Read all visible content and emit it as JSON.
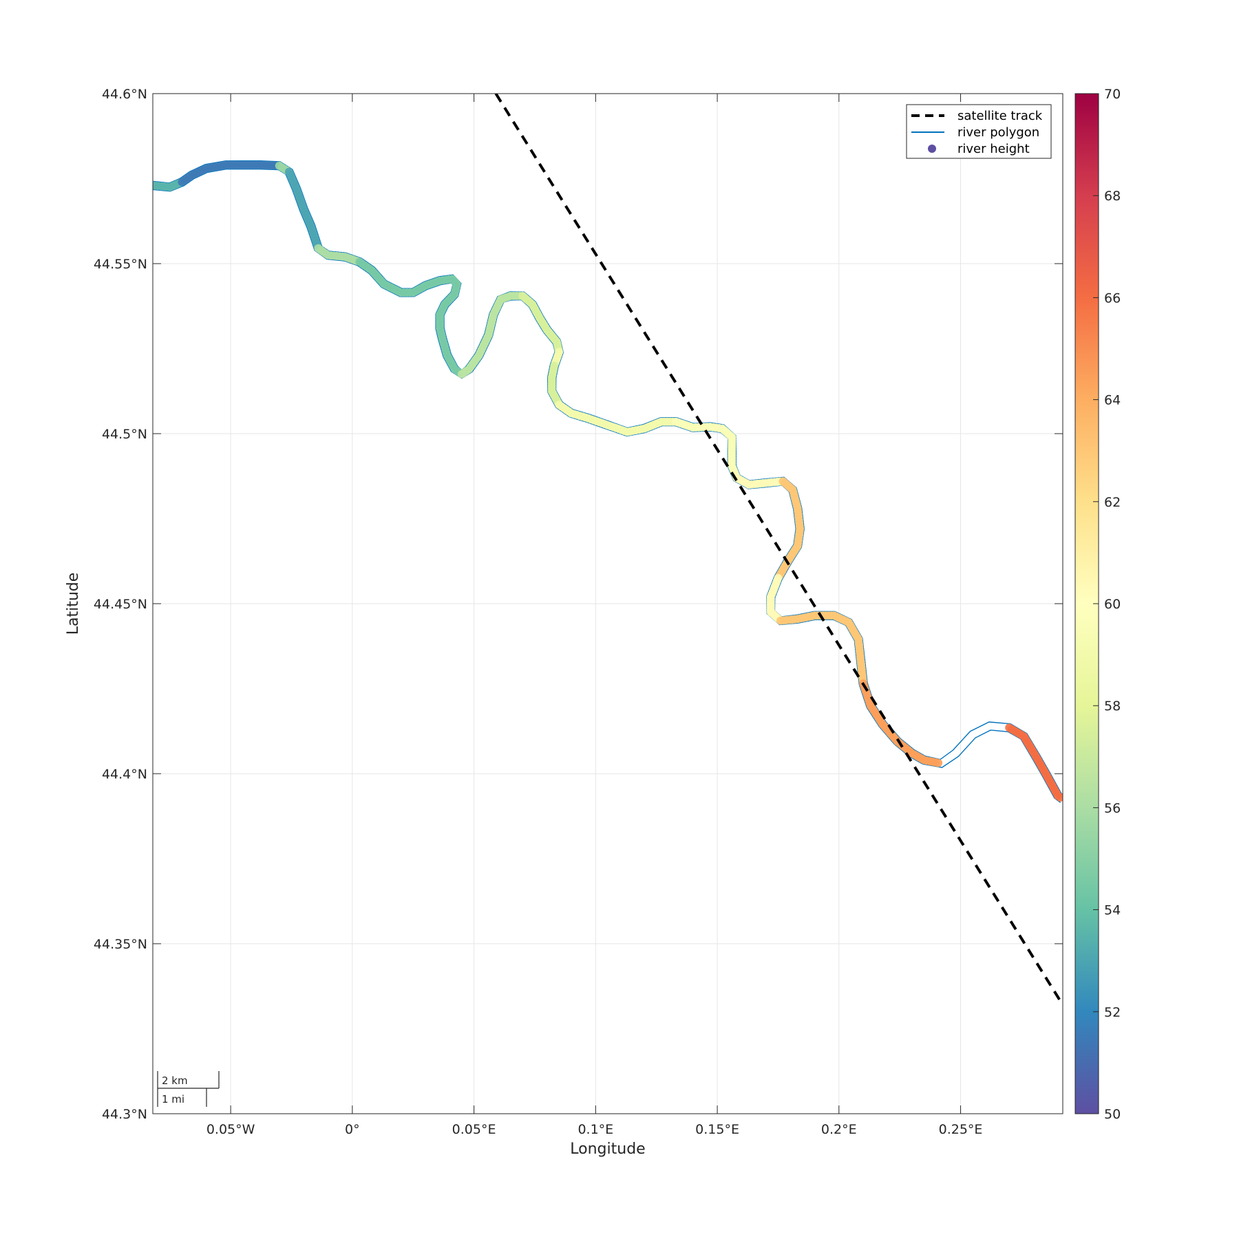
{
  "chart_data": {
    "type": "scatter",
    "xlabel": "Longitude",
    "ylabel": "Latitude",
    "xlim": [
      -0.082,
      0.292
    ],
    "ylim": [
      44.3,
      44.6
    ],
    "x_ticks": [
      {
        "value": -0.05,
        "label": "0.05°W"
      },
      {
        "value": 0.0,
        "label": "0°"
      },
      {
        "value": 0.05,
        "label": "0.05°E"
      },
      {
        "value": 0.1,
        "label": "0.1°E"
      },
      {
        "value": 0.15,
        "label": "0.15°E"
      },
      {
        "value": 0.2,
        "label": "0.2°E"
      },
      {
        "value": 0.25,
        "label": "0.25°E"
      }
    ],
    "y_ticks": [
      {
        "value": 44.3,
        "label": "44.3°N"
      },
      {
        "value": 44.35,
        "label": "44.35°N"
      },
      {
        "value": 44.4,
        "label": "44.4°N"
      },
      {
        "value": 44.45,
        "label": "44.45°N"
      },
      {
        "value": 44.5,
        "label": "44.5°N"
      },
      {
        "value": 44.55,
        "label": "44.55°N"
      },
      {
        "value": 44.6,
        "label": "44.6°N"
      }
    ],
    "grid": true,
    "legend_position": "top-right",
    "legend": [
      {
        "label": "satellite track",
        "style": "dashed-line",
        "color": "#000000"
      },
      {
        "label": "river polygon",
        "style": "line",
        "color": "#0072bd"
      },
      {
        "label": "river height",
        "style": "marker",
        "color": "#5e4fa2"
      }
    ],
    "satellite_track": [
      {
        "lon": 0.059,
        "lat": 44.6
      },
      {
        "lon": 0.292,
        "lat": 44.332
      }
    ],
    "river_centerline": [
      [
        -0.082,
        44.573
      ],
      [
        -0.075,
        44.5725
      ],
      [
        -0.07,
        44.574
      ],
      [
        -0.066,
        44.576
      ],
      [
        -0.06,
        44.578
      ],
      [
        -0.052,
        44.579
      ],
      [
        -0.045,
        44.579
      ],
      [
        -0.038,
        44.579
      ],
      [
        -0.03,
        44.5788
      ],
      [
        -0.026,
        44.577
      ],
      [
        -0.023,
        44.572
      ],
      [
        -0.02,
        44.566
      ],
      [
        -0.017,
        44.561
      ],
      [
        -0.014,
        44.5545
      ],
      [
        -0.01,
        44.5525
      ],
      [
        -0.003,
        44.552
      ],
      [
        0.003,
        44.5505
      ],
      [
        0.008,
        44.548
      ],
      [
        0.013,
        44.544
      ],
      [
        0.02,
        44.5415
      ],
      [
        0.025,
        44.5415
      ],
      [
        0.03,
        44.5435
      ],
      [
        0.036,
        44.545
      ],
      [
        0.041,
        44.5455
      ],
      [
        0.043,
        44.544
      ],
      [
        0.042,
        44.541
      ],
      [
        0.038,
        44.538
      ],
      [
        0.036,
        44.535
      ],
      [
        0.036,
        44.531
      ],
      [
        0.037,
        44.528
      ],
      [
        0.039,
        44.523
      ],
      [
        0.042,
        44.519
      ],
      [
        0.045,
        44.5175
      ],
      [
        0.048,
        44.519
      ],
      [
        0.052,
        44.523
      ],
      [
        0.056,
        44.529
      ],
      [
        0.058,
        44.535
      ],
      [
        0.061,
        44.5395
      ],
      [
        0.065,
        44.5405
      ],
      [
        0.07,
        44.5405
      ],
      [
        0.074,
        44.538
      ],
      [
        0.077,
        44.534
      ],
      [
        0.08,
        44.5305
      ],
      [
        0.084,
        44.527
      ],
      [
        0.085,
        44.524
      ],
      [
        0.083,
        44.52
      ],
      [
        0.082,
        44.5165
      ],
      [
        0.082,
        44.5125
      ],
      [
        0.085,
        44.5085
      ],
      [
        0.09,
        44.506
      ],
      [
        0.097,
        44.5045
      ],
      [
        0.105,
        44.5025
      ],
      [
        0.113,
        44.5005
      ],
      [
        0.12,
        44.5015
      ],
      [
        0.127,
        44.5035
      ],
      [
        0.133,
        44.5035
      ],
      [
        0.14,
        44.5018
      ],
      [
        0.147,
        44.502
      ],
      [
        0.152,
        44.5015
      ],
      [
        0.156,
        44.499
      ],
      [
        0.156,
        44.4945
      ],
      [
        0.156,
        44.4905
      ],
      [
        0.158,
        44.487
      ],
      [
        0.163,
        44.485
      ],
      [
        0.17,
        44.4855
      ],
      [
        0.177,
        44.486
      ],
      [
        0.181,
        44.4835
      ],
      [
        0.183,
        44.478
      ],
      [
        0.184,
        44.472
      ],
      [
        0.183,
        44.467
      ],
      [
        0.179,
        44.4625
      ],
      [
        0.175,
        44.4575
      ],
      [
        0.172,
        44.452
      ],
      [
        0.172,
        44.4475
      ],
      [
        0.176,
        44.445
      ],
      [
        0.183,
        44.4455
      ],
      [
        0.19,
        44.4465
      ],
      [
        0.198,
        44.4465
      ],
      [
        0.204,
        44.4445
      ],
      [
        0.208,
        44.4395
      ],
      [
        0.209,
        44.433
      ],
      [
        0.21,
        44.4265
      ],
      [
        0.213,
        44.42
      ],
      [
        0.218,
        44.4145
      ],
      [
        0.224,
        44.4095
      ],
      [
        0.23,
        44.406
      ],
      [
        0.235,
        44.404
      ],
      [
        0.242,
        44.403
      ],
      [
        0.248,
        44.406
      ],
      [
        0.255,
        44.4115
      ],
      [
        0.262,
        44.414
      ],
      [
        0.27,
        44.4135
      ],
      [
        0.276,
        44.411
      ],
      [
        0.281,
        44.405
      ],
      [
        0.285,
        44.4
      ],
      [
        0.29,
        44.3935
      ],
      [
        0.292,
        44.3925
      ]
    ],
    "river_height": [
      {
        "from_lon": -0.082,
        "to_lon": -0.07,
        "value": 53.5
      },
      {
        "from_lon": -0.07,
        "to_lon": -0.035,
        "value": 51.5
      },
      {
        "from_lon": -0.035,
        "to_lon": -0.026,
        "value": 55.5
      },
      {
        "from_lon": -0.026,
        "to_lon": -0.014,
        "value": 53.0
      },
      {
        "from_lon": -0.014,
        "to_lon": 0.0,
        "value": 56.0
      },
      {
        "from_lon": 0.0,
        "to_lon": 0.045,
        "value": 54.5
      },
      {
        "from_lon": 0.045,
        "to_lon": 0.07,
        "value": 56.5
      },
      {
        "from_lon": 0.07,
        "to_lon": 0.085,
        "value": 57.5
      },
      {
        "from_lon": 0.085,
        "to_lon": 0.13,
        "value": 59.0
      },
      {
        "from_lon": 0.13,
        "to_lon": 0.158,
        "value": 59.6
      },
      {
        "from_lon": 0.158,
        "to_lon": 0.184,
        "value": 60.3
      },
      {
        "from_lon": 0.184,
        "to_lon": 0.176,
        "value": 62.0
      },
      {
        "from_lon": 0.176,
        "to_lon": 0.21,
        "value": 63.0
      },
      {
        "from_lon": 0.21,
        "to_lon": 0.24,
        "value": 64.5
      },
      {
        "from_lon": 0.27,
        "to_lon": 0.292,
        "value": 66.0
      }
    ],
    "colorbar": {
      "min": 50,
      "max": 70,
      "ticks": [
        "50",
        "52",
        "54",
        "56",
        "58",
        "60",
        "62",
        "64",
        "66",
        "68",
        "70"
      ],
      "colormap": "spectral-reversed"
    },
    "scale_bar": {
      "km_label": "2 km",
      "mi_label": "1 mi"
    }
  }
}
